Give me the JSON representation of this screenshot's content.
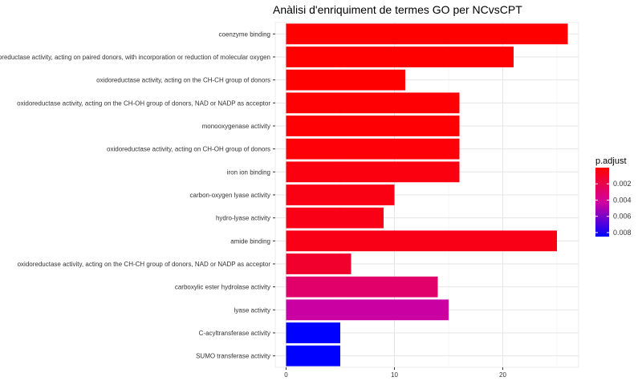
{
  "chart_data": {
    "type": "bar",
    "orientation": "horizontal",
    "title": "Anàlisi d'enriquiment de termes GO per NCvsCPT",
    "xlabel": "",
    "ylabel": "",
    "xlim": [
      -1,
      27
    ],
    "xticks": [
      "0",
      "10",
      "20"
    ],
    "grid": true,
    "legend_position": "right",
    "categories": [
      "coenzyme binding",
      "oxidoreductase activity, acting on paired donors, with incorporation or reduction of molecular oxygen",
      "oxidoreductase activity, acting on the CH-CH group of donors",
      "oxidoreductase activity, acting on the CH-OH group of donors, NAD or NADP as acceptor",
      "monooxygenase activity",
      "oxidoreductase activity, acting on CH-OH group of donors",
      "iron ion binding",
      "carbon-oxygen lyase activity",
      "hydro-lyase activity",
      "amide binding",
      "oxidoreductase activity, acting on the CH-CH group of donors, NAD or NADP as acceptor",
      "carboxylic ester hydrolase activity",
      "lyase activity",
      "C-acyltransferase activity",
      "SUMO transferase activity"
    ],
    "values": [
      26,
      21,
      11,
      16,
      16,
      16,
      16,
      10,
      9,
      25,
      6,
      14,
      15,
      5,
      5
    ],
    "p_adjust": [
      0.0,
      0.0,
      0.0,
      0.0001,
      0.0001,
      0.0002,
      0.0004,
      0.0005,
      0.0006,
      0.0006,
      0.0012,
      0.0028,
      0.0044,
      0.0085,
      0.0085
    ],
    "legend": {
      "title": "p.adjust",
      "ticks": [
        "0.002",
        "0.004",
        "0.006",
        "0.008"
      ],
      "tick_values": [
        0.002,
        0.004,
        0.006,
        0.008
      ],
      "range": [
        0.0,
        0.0085
      ],
      "color_low": "#ff0000",
      "color_high": "#0000ff"
    }
  }
}
